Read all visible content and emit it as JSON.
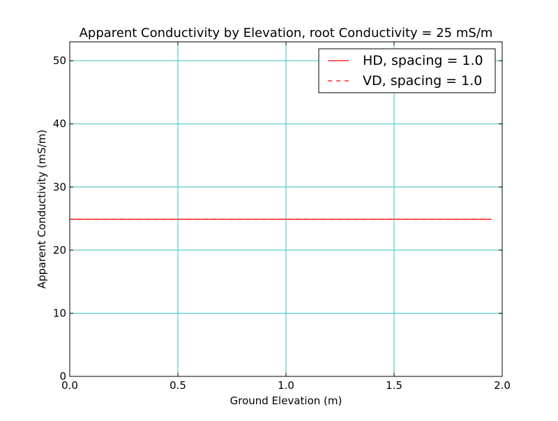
{
  "chart_data": {
    "type": "line",
    "title": "Apparent Conductivity by Elevation, root Conductivity = 25 mS/m",
    "xlabel": "Ground Elevation (m)",
    "ylabel": "Apparent Conductivity (mS/m)",
    "xlim": [
      0,
      2.0
    ],
    "ylim": [
      0,
      53
    ],
    "xticks": [
      0,
      0.5,
      1.0,
      1.5,
      2.0
    ],
    "xtick_labels": [
      "0.0",
      "0.5",
      "1.0",
      "1.5",
      "2.0"
    ],
    "yticks": [
      0,
      10,
      20,
      30,
      40,
      50
    ],
    "ytick_labels": [
      "0",
      "10",
      "20",
      "30",
      "40",
      "50"
    ],
    "grid": true,
    "legend_position": "top-right",
    "series": [
      {
        "name": "HD, spacing = 1.0",
        "style": "solid",
        "color": "#ff0000",
        "x": [
          0.0,
          1.95
        ],
        "y": [
          24.9,
          24.9
        ]
      },
      {
        "name": "VD, spacing = 1.0",
        "style": "dashed",
        "color": "#ff0000",
        "x": [
          0.0,
          1.95
        ],
        "y": [
          24.9,
          24.9
        ]
      }
    ],
    "colors": {
      "grid": "#3fbfbf",
      "axes": "#000000"
    }
  }
}
